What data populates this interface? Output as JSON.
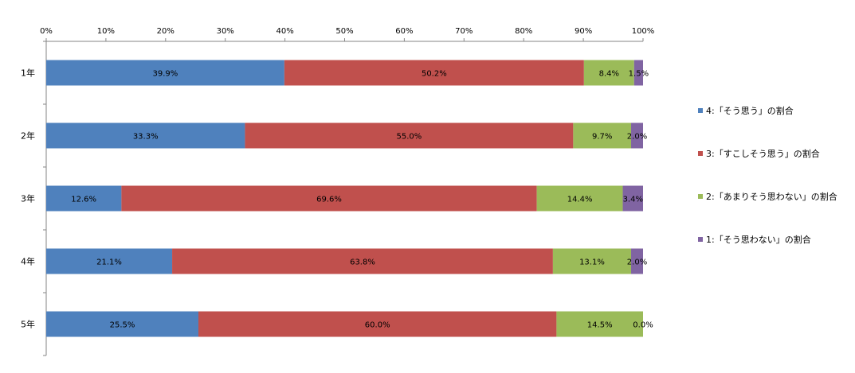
{
  "chart_data": {
    "type": "bar",
    "orientation": "horizontal",
    "stacked": "percent",
    "categories": [
      "1年",
      "2年",
      "3年",
      "4年",
      "5年"
    ],
    "x_ticks": [
      "0%",
      "10%",
      "20%",
      "30%",
      "40%",
      "50%",
      "60%",
      "70%",
      "80%",
      "90%",
      "100%"
    ],
    "xlim": [
      0,
      100
    ],
    "grid": false,
    "legend_position": "right",
    "series": [
      {
        "name": "4:「そう思う」の割合",
        "color": "#4F81BD",
        "values": [
          39.9,
          33.3,
          12.6,
          21.1,
          25.5
        ],
        "labels": [
          "39.9%",
          "33.3%",
          "12.6%",
          "21.1%",
          "25.5%"
        ]
      },
      {
        "name": "3:「すこしそう思う」の割合",
        "color": "#C0504D",
        "values": [
          50.2,
          55.0,
          69.6,
          63.8,
          60.0
        ],
        "labels": [
          "50.2%",
          "55.0%",
          "69.6%",
          "63.8%",
          "60.0%"
        ]
      },
      {
        "name": "2:「あまりそう思わない」の割合",
        "color": "#9BBB59",
        "values": [
          8.4,
          9.7,
          14.4,
          13.1,
          14.5
        ],
        "labels": [
          "8.4%",
          "9.7%",
          "14.4%",
          "13.1%",
          "14.5%"
        ]
      },
      {
        "name": "1:「そう思わない」の割合",
        "color": "#8064A2",
        "values": [
          1.5,
          2.0,
          3.4,
          2.0,
          0.0
        ],
        "labels": [
          "1.5%",
          "2.0%",
          "3.4%",
          "2.0%",
          "0.0%"
        ]
      }
    ]
  }
}
